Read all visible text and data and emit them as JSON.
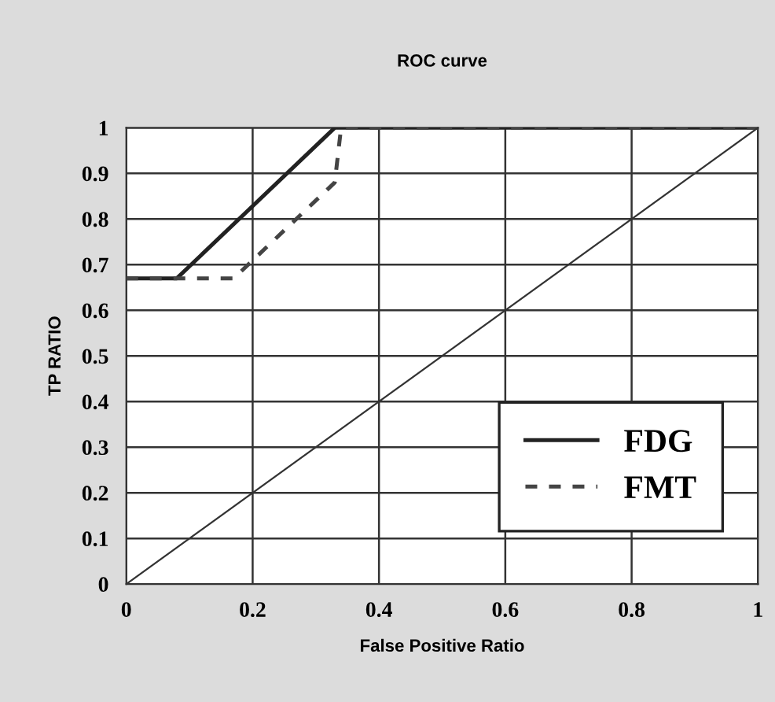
{
  "chart_data": {
    "type": "line",
    "title": "ROC curve",
    "xlabel": "False Positive Ratio",
    "ylabel": "TP RATIO",
    "xlim": [
      0,
      1
    ],
    "ylim": [
      0,
      1
    ],
    "xticks": [
      0,
      0.2,
      0.4,
      0.6,
      0.8,
      1
    ],
    "yticks": [
      0,
      0.1,
      0.2,
      0.3,
      0.4,
      0.5,
      0.6,
      0.7,
      0.8,
      0.9,
      1
    ],
    "grid": true,
    "legend": "bottom right",
    "series": [
      {
        "name": "FDG",
        "color": "#222222",
        "line_style": "solid",
        "x": [
          0,
          0.08,
          0.33,
          1
        ],
        "values": [
          0.67,
          0.67,
          1,
          1
        ]
      },
      {
        "name": "FMT",
        "color": "#444444",
        "line_style": "dashed",
        "x": [
          0,
          0.17,
          0.33,
          0.34,
          1
        ],
        "values": [
          0.67,
          0.67,
          0.88,
          1,
          1
        ]
      },
      {
        "color": "#333333",
        "line_style": "solid",
        "x": [
          0,
          1
        ],
        "values": [
          0,
          1
        ]
      }
    ]
  }
}
